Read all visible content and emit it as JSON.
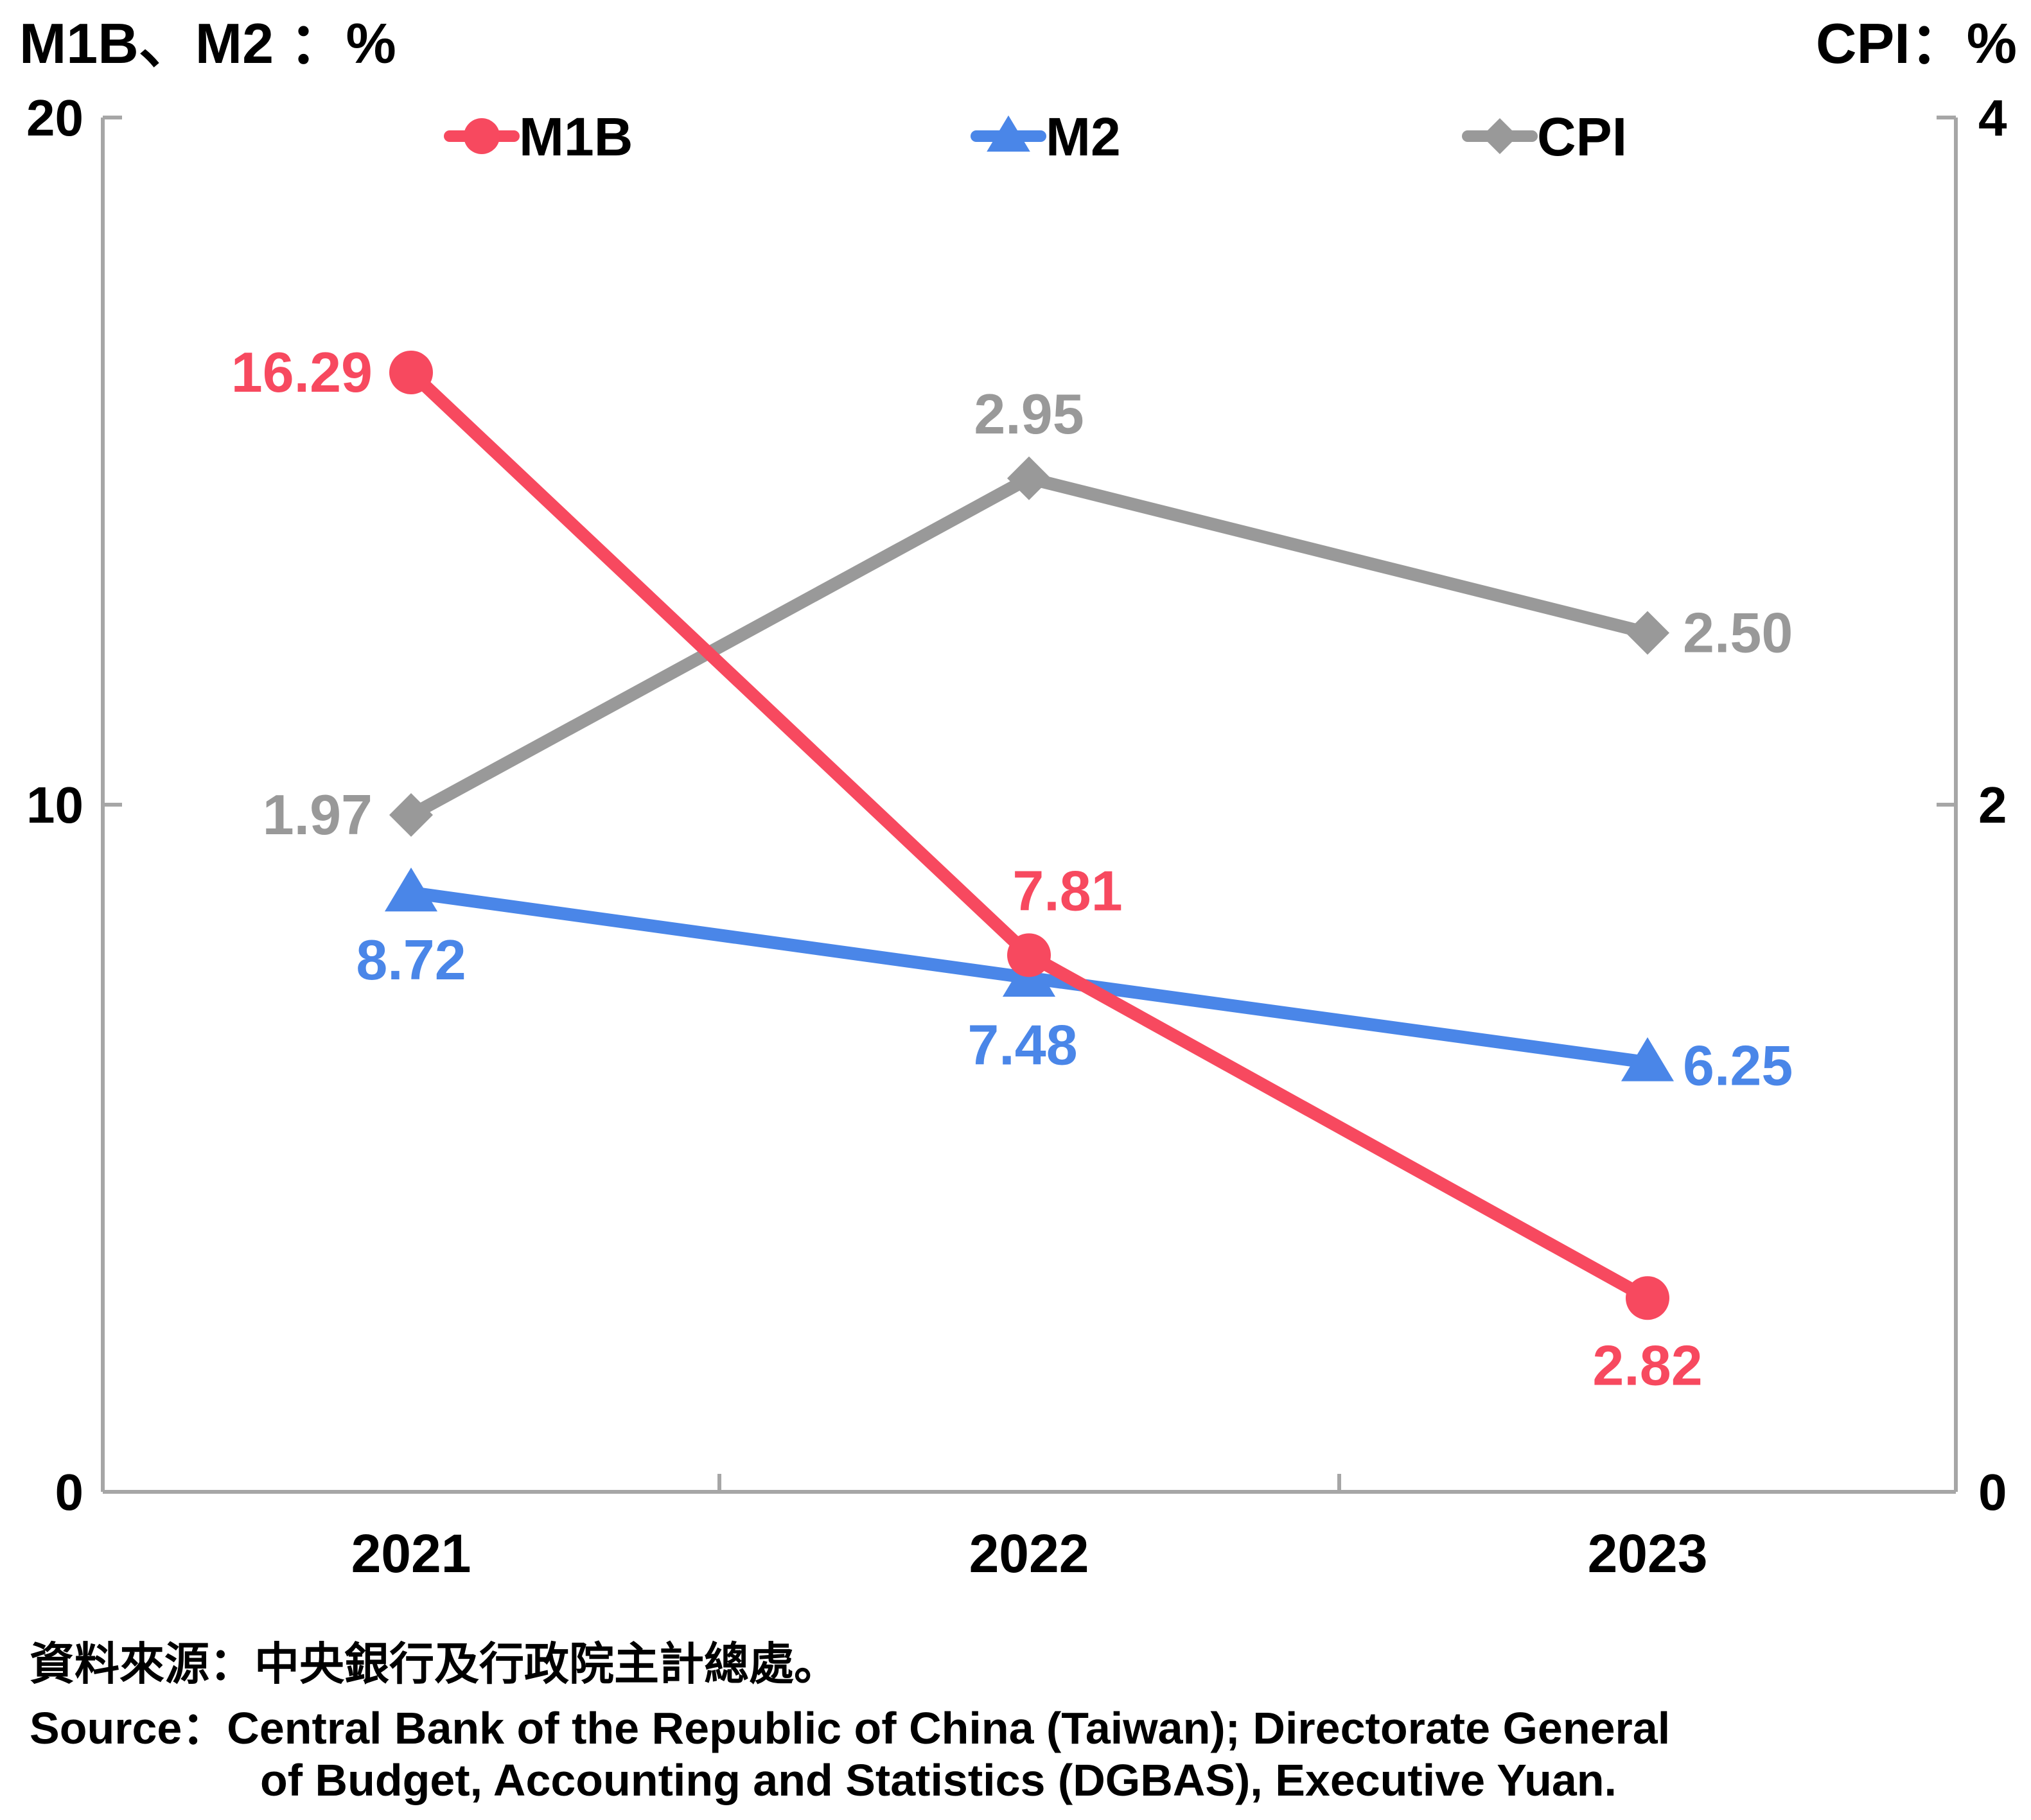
{
  "chart_data": {
    "type": "line",
    "categories": [
      "2021",
      "2022",
      "2023"
    ],
    "left_axis": {
      "title": "M1B、M2 ：%",
      "ylim": [
        0,
        20
      ],
      "ticks": [
        0,
        10,
        20
      ]
    },
    "right_axis": {
      "title": "CPI：%",
      "ylim": [
        0,
        4
      ],
      "ticks": [
        0,
        2,
        4
      ]
    },
    "legend_position": "top",
    "grid": false,
    "series": [
      {
        "name": "M1B",
        "axis": "left",
        "values": [
          16.29,
          7.81,
          2.82
        ],
        "labels": [
          "16.29",
          "7.81",
          "2.82"
        ],
        "color": "#F7495F",
        "marker": "circle"
      },
      {
        "name": "M2",
        "axis": "left",
        "values": [
          8.72,
          7.48,
          6.25
        ],
        "labels": [
          "8.72",
          "7.48",
          "6.25"
        ],
        "color": "#4A86E8",
        "marker": "triangle"
      },
      {
        "name": "CPI",
        "axis": "right",
        "values": [
          1.97,
          2.95,
          2.5
        ],
        "labels": [
          "1.97",
          "2.95",
          "2.50"
        ],
        "color": "#999999",
        "marker": "diamond"
      }
    ]
  },
  "source": {
    "zh": "資料來源：中央銀行及行政院主計總處。",
    "en_line1": "Source：Central Bank of the Republic of China (Taiwan); Directorate General",
    "en_line2": "of Budget, Accounting and Statistics (DGBAS), Executive Yuan."
  }
}
